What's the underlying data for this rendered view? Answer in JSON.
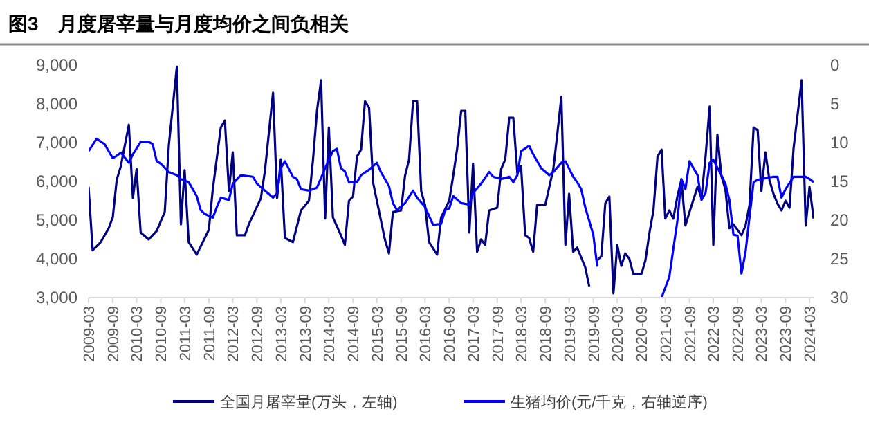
{
  "chart_data": {
    "type": "line",
    "title": "图3　月度屠宰量与月度均价之间负相关",
    "xlim": [
      "2009-03",
      "2024-04"
    ],
    "xticks": [
      "2009-03",
      "2009-09",
      "2010-03",
      "2010-09",
      "2011-03",
      "2011-09",
      "2012-03",
      "2012-09",
      "2013-03",
      "2013-09",
      "2014-03",
      "2014-09",
      "2015-03",
      "2015-09",
      "2016-03",
      "2016-09",
      "2017-03",
      "2017-09",
      "2018-03",
      "2018-09",
      "2019-03",
      "2019-09",
      "2020-03",
      "2020-09",
      "2021-03",
      "2021-09",
      "2022-03",
      "2022-09",
      "2023-03",
      "2023-09",
      "2024-03"
    ],
    "ylim": [
      3000,
      9000
    ],
    "yticks": [
      {
        "value": 3000,
        "label": "3,000"
      },
      {
        "value": 4000,
        "label": "4,000"
      },
      {
        "value": 5000,
        "label": "5,000"
      },
      {
        "value": 6000,
        "label": "6,000"
      },
      {
        "value": 7000,
        "label": "7,000"
      },
      {
        "value": 8000,
        "label": "8,000"
      },
      {
        "value": 9000,
        "label": "9,000"
      }
    ],
    "y2lim": [
      30,
      0
    ],
    "y2ticks": [
      0,
      5,
      10,
      15,
      20,
      25,
      30
    ],
    "legend": "bottom",
    "series": [
      {
        "name": "全国月屠宰量(万头，左轴)",
        "color": "#000080",
        "x": [
          "2009-03",
          "2009-04",
          "2009-06",
          "2009-08",
          "2009-09",
          "2009-10",
          "2009-11",
          "2010-01",
          "2010-02",
          "2010-03",
          "2010-04",
          "2010-06",
          "2010-08",
          "2010-10",
          "2010-11",
          "2011-01",
          "2011-02",
          "2011-03",
          "2011-04",
          "2011-06",
          "2011-09",
          "2011-10",
          "2011-12",
          "2012-01",
          "2012-02",
          "2012-03",
          "2012-04",
          "2012-06",
          "2012-07",
          "2012-10",
          "2012-11",
          "2013-01",
          "2013-02",
          "2013-03",
          "2013-04",
          "2013-06",
          "2013-08",
          "2013-10",
          "2013-11",
          "2013-12",
          "2014-01",
          "2014-02",
          "2014-03",
          "2014-04",
          "2014-06",
          "2014-07",
          "2014-08",
          "2014-09",
          "2014-10",
          "2014-11",
          "2014-12",
          "2015-01",
          "2015-02",
          "2015-03",
          "2015-05",
          "2015-06",
          "2015-07",
          "2015-09",
          "2015-10",
          "2015-11",
          "2015-12",
          "2016-01",
          "2016-02",
          "2016-03",
          "2016-04",
          "2016-06",
          "2016-07",
          "2016-09",
          "2016-10",
          "2016-11",
          "2016-12",
          "2017-01",
          "2017-02",
          "2017-03",
          "2017-04",
          "2017-05",
          "2017-06",
          "2017-07",
          "2017-09",
          "2017-10",
          "2017-11",
          "2017-12",
          "2018-01",
          "2018-02",
          "2018-03",
          "2018-04",
          "2018-05",
          "2018-06",
          "2018-07",
          "2018-09",
          "2018-11",
          "2018-12",
          "2019-01",
          "2019-02",
          "2019-03",
          "2019-04",
          "2019-05",
          "2019-07",
          "2019-08",
          "2019-09",
          "2019-10",
          "2019-11",
          "2019-12",
          "2020-01",
          "2020-02",
          "2020-03",
          "2020-04",
          "2020-05",
          "2020-06",
          "2020-07",
          "2020-09",
          "2020-10",
          "2020-11",
          "2020-12",
          "2021-01",
          "2021-02",
          "2021-03",
          "2021-04",
          "2021-05",
          "2021-06",
          "2021-07",
          "2021-08",
          "2021-09",
          "2021-11",
          "2021-12",
          "2022-01",
          "2022-02",
          "2022-03",
          "2022-04",
          "2022-05",
          "2022-06",
          "2022-07",
          "2022-08",
          "2022-10",
          "2022-11",
          "2022-12",
          "2023-01",
          "2023-02",
          "2023-03",
          "2023-04",
          "2023-05",
          "2023-06",
          "2023-07",
          "2023-08",
          "2023-09",
          "2023-10",
          "2023-11",
          "2023-12",
          "2024-01",
          "2024-02",
          "2024-03",
          "2024-04"
        ],
        "values": [
          5860,
          4220,
          4430,
          4790,
          5070,
          6040,
          6390,
          7460,
          5570,
          6320,
          4680,
          4500,
          4720,
          5210,
          6930,
          8960,
          4890,
          6290,
          4430,
          4110,
          4750,
          5790,
          7390,
          7570,
          5750,
          6750,
          4610,
          4610,
          4890,
          5570,
          6290,
          8290,
          5570,
          6570,
          4540,
          4430,
          5250,
          5500,
          6570,
          7820,
          8610,
          5040,
          7390,
          5070,
          4610,
          4360,
          5500,
          5610,
          6640,
          6820,
          8070,
          7900,
          5960,
          5500,
          4500,
          4140,
          5210,
          5250,
          6140,
          6570,
          8070,
          8070,
          5750,
          5390,
          4430,
          4110,
          5070,
          5500,
          6140,
          6860,
          7820,
          7820,
          4680,
          6460,
          4180,
          4500,
          4360,
          5250,
          5320,
          6320,
          6570,
          7640,
          7640,
          6210,
          6390,
          4610,
          4540,
          4180,
          5390,
          5390,
          6320,
          7210,
          8180,
          4360,
          5680,
          4180,
          4290,
          3790,
          3290,
          null,
          3960,
          4070,
          5430,
          5610,
          3110,
          4360,
          3820,
          4140,
          4000,
          3610,
          3610,
          3960,
          4680,
          5250,
          6640,
          6820,
          5040,
          5250,
          5040,
          5610,
          6040,
          4860,
          5210,
          5860,
          5570,
          6640,
          7930,
          4360,
          7210,
          6140,
          5790,
          4790,
          4890,
          4610,
          4860,
          5390,
          7390,
          7320,
          5750,
          6750,
          6040,
          5680,
          5430,
          5250,
          5500,
          5320,
          6860,
          7710,
          8610,
          4860,
          5860,
          5040
        ]
      },
      {
        "name": "生猪均价(元/千克，右轴逆序)",
        "color": "#0000ff",
        "axis": "y2",
        "x": [
          "2009-03",
          "2009-05",
          "2009-07",
          "2009-09",
          "2009-10",
          "2009-11",
          "2010-01",
          "2010-02",
          "2010-04",
          "2010-06",
          "2010-07",
          "2010-08",
          "2010-09",
          "2010-11",
          "2011-01",
          "2011-02",
          "2011-04",
          "2011-06",
          "2011-07",
          "2011-08",
          "2011-10",
          "2011-11",
          "2011-12",
          "2012-02",
          "2012-03",
          "2012-05",
          "2012-08",
          "2012-09",
          "2012-11",
          "2013-01",
          "2013-02",
          "2013-03",
          "2013-04",
          "2013-06",
          "2013-07",
          "2013-08",
          "2013-10",
          "2013-12",
          "2014-02",
          "2014-04",
          "2014-05",
          "2014-06",
          "2014-07",
          "2014-08",
          "2014-10",
          "2014-11",
          "2015-01",
          "2015-03",
          "2015-04",
          "2015-06",
          "2015-07",
          "2015-08",
          "2015-10",
          "2015-12",
          "2016-01",
          "2016-03",
          "2016-05",
          "2016-07",
          "2016-08",
          "2016-09",
          "2016-10",
          "2016-12",
          "2017-02",
          "2017-03",
          "2017-05",
          "2017-07",
          "2017-08",
          "2017-10",
          "2017-12",
          "2018-01",
          "2018-02",
          "2018-03",
          "2018-05",
          "2018-06",
          "2018-08",
          "2018-10",
          "2018-11",
          "2019-01",
          "2019-02",
          "2019-04",
          "2019-05",
          "2019-06",
          "2019-07",
          "2019-09",
          "2019-10",
          "2019-11",
          "2021-02",
          "2021-04",
          "2021-05",
          "2021-06",
          "2021-07",
          "2021-08",
          "2021-09",
          "2021-11",
          "2021-12",
          "2022-01",
          "2022-02",
          "2022-03",
          "2022-05",
          "2022-06",
          "2022-07",
          "2022-08",
          "2022-09",
          "2022-10",
          "2022-11",
          "2022-12",
          "2023-01",
          "2023-02",
          "2023-03",
          "2023-04",
          "2023-06",
          "2023-07",
          "2023-08",
          "2023-09",
          "2023-11",
          "2023-12",
          "2024-02",
          "2024-03",
          "2024-04"
        ],
        "values": [
          11.1,
          9.5,
          10.2,
          12.0,
          11.7,
          11.3,
          12.6,
          11.5,
          9.9,
          9.9,
          10.2,
          12.4,
          12.7,
          13.8,
          14.2,
          14.7,
          15.1,
          16.9,
          18.7,
          19.2,
          19.7,
          18.3,
          17.1,
          17.4,
          15.3,
          14.2,
          14.4,
          15.3,
          16.2,
          17.1,
          16.5,
          13.3,
          12.4,
          14.4,
          14.7,
          16.0,
          16.2,
          15.8,
          13.3,
          11.1,
          10.8,
          13.3,
          13.7,
          15.1,
          15.1,
          14.2,
          13.5,
          12.6,
          13.8,
          15.6,
          17.8,
          18.7,
          17.8,
          16.2,
          17.1,
          18.3,
          20.6,
          20.5,
          18.7,
          18.5,
          16.9,
          17.8,
          18.0,
          16.5,
          15.3,
          13.8,
          14.4,
          14.7,
          14.4,
          15.1,
          14.2,
          11.1,
          10.4,
          11.5,
          13.3,
          14.2,
          13.8,
          12.6,
          12.4,
          14.4,
          15.1,
          16.0,
          18.3,
          21.9,
          26.0,
          null,
          30,
          27.3,
          23.7,
          20.1,
          14.7,
          16.0,
          12.4,
          14.2,
          17.4,
          16.5,
          12.6,
          12.2,
          14.2,
          15.3,
          17.4,
          21.9,
          22.0,
          26.9,
          24.1,
          19.6,
          15.1,
          14.8,
          14.7,
          14.6,
          14.4,
          14.4,
          17.1,
          16.0,
          14.4,
          14.4,
          14.4,
          14.7,
          15.1
        ]
      }
    ]
  }
}
